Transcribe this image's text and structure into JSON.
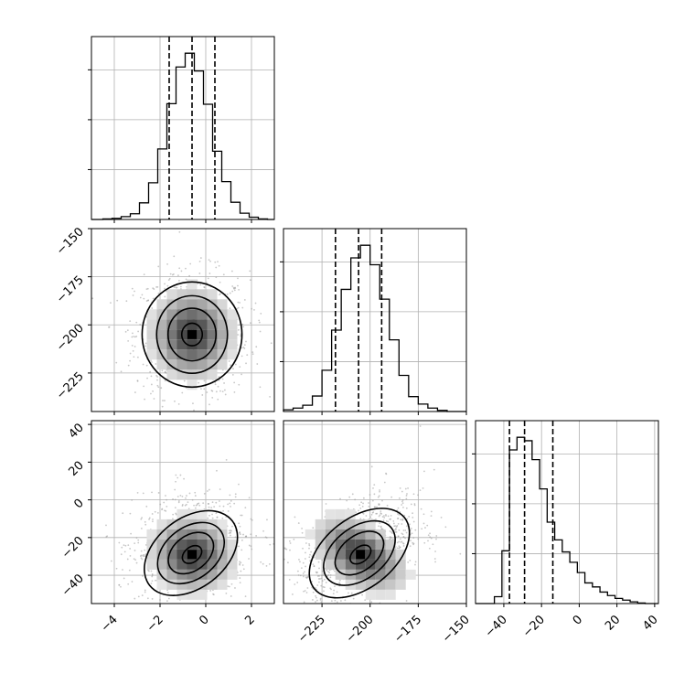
{
  "chart_data": {
    "type": "corner",
    "title": "",
    "grid": true,
    "parameters": [
      {
        "index": 0,
        "range": [
          -5,
          3
        ],
        "ticks": [
          -4,
          -2,
          0,
          2
        ],
        "tick_labels": [
          "−4",
          "−2",
          "0",
          "2"
        ],
        "quantiles": [
          -1.6,
          -0.6,
          0.4
        ]
      },
      {
        "index": 1,
        "range": [
          -245,
          -150
        ],
        "ticks": [
          -225,
          -200,
          -175,
          -150
        ],
        "tick_labels": [
          "−225",
          "−200",
          "−175",
          "−150"
        ],
        "quantiles": [
          -218,
          -206,
          -194
        ]
      },
      {
        "index": 2,
        "range": [
          -55,
          42
        ],
        "ticks": [
          -40,
          -20,
          0,
          20,
          40
        ],
        "tick_labels": [
          "−40",
          "−20",
          "0",
          "20",
          "40"
        ],
        "quantiles": [
          -37,
          -29,
          -14
        ]
      }
    ],
    "histograms": [
      {
        "param": 0,
        "bin_edges": [
          -4.5,
          -4.1,
          -3.7,
          -3.3,
          -2.9,
          -2.5,
          -2.1,
          -1.7,
          -1.3,
          -0.9,
          -0.5,
          -0.1,
          0.3,
          0.7,
          1.1,
          1.5,
          1.9,
          2.3,
          2.7
        ],
        "counts": [
          1,
          2,
          5,
          10,
          29,
          64,
          123,
          202,
          266,
          290,
          259,
          201,
          119,
          66,
          30,
          11,
          4,
          1
        ]
      },
      {
        "param": 1,
        "bin_edges": [
          -245,
          -240,
          -235,
          -230,
          -225,
          -220,
          -215,
          -210,
          -205,
          -200,
          -195,
          -190,
          -185,
          -180,
          -175,
          -170,
          -165,
          -160
        ],
        "counts": [
          3,
          6,
          11,
          27,
          72,
          142,
          213,
          268,
          290,
          256,
          196,
          125,
          63,
          26,
          13,
          6,
          2
        ]
      },
      {
        "param": 2,
        "bin_edges": [
          -45,
          -41,
          -37,
          -33,
          -29,
          -25,
          -21,
          -17,
          -13,
          -9,
          -5,
          -1,
          3,
          7,
          11,
          15,
          19,
          23,
          27,
          31,
          35
        ],
        "counts": [
          12,
          92,
          268,
          290,
          284,
          251,
          200,
          142,
          111,
          90,
          72,
          54,
          36,
          29,
          20,
          14,
          9,
          6,
          3,
          1
        ]
      }
    ],
    "joint_2d": [
      {
        "x_param": 0,
        "y_param": 1,
        "center": [
          -0.6,
          -205
        ],
        "spread": [
          1.0,
          13
        ],
        "corr": 0.0,
        "contour_levels": [
          "0.5σ",
          "1σ",
          "1.5σ",
          "2σ"
        ]
      },
      {
        "x_param": 0,
        "y_param": 2,
        "center": [
          -0.6,
          -29
        ],
        "spread": [
          1.0,
          11
        ],
        "corr": 0.05,
        "contour_levels": [
          "0.5σ",
          "1σ",
          "1.5σ",
          "2σ"
        ]
      },
      {
        "x_param": 1,
        "y_param": 2,
        "center": [
          -205,
          -29
        ],
        "spread": [
          13,
          11
        ],
        "corr": 0.45,
        "contour_levels": [
          "0.5σ",
          "1σ",
          "1.5σ",
          "2σ"
        ]
      }
    ]
  }
}
